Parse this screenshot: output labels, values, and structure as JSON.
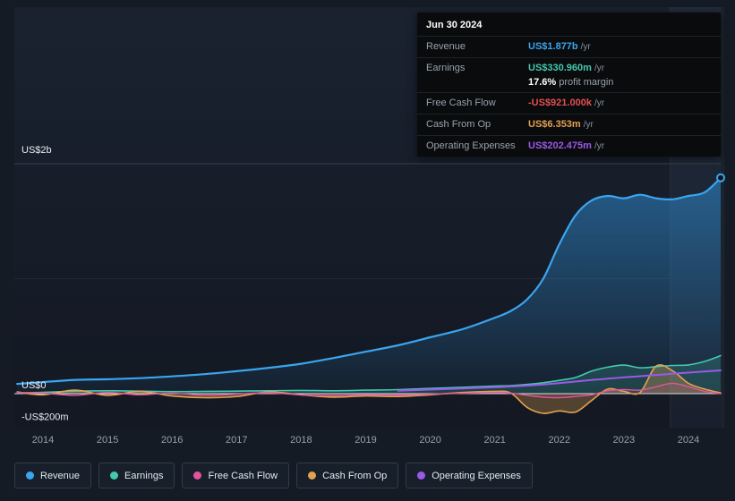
{
  "colors": {
    "revenue": "#3aa5f0",
    "earnings": "#45c8b0",
    "fcf": "#e0559d",
    "cashop": "#e3a14f",
    "opex": "#9b59e8",
    "negative": "#e25050",
    "grid_major": "#39424e",
    "grid_minor": "#1f2835",
    "zero_line": "#e8edf2",
    "axis_text": "#97a1ad",
    "ylabel_text": "#e8edf2",
    "highlight_band": "rgba(141,173,217,0.06)",
    "tooltip_bg": "#0a0b0d"
  },
  "tooltip": {
    "date": "Jun 30 2024",
    "rows": [
      {
        "label": "Revenue",
        "value": "US$1.877b",
        "suffix": "/yr"
      },
      {
        "label": "Earnings",
        "value": "US$330.960m",
        "suffix": "/yr"
      },
      {
        "label": "Free Cash Flow",
        "value": "-US$921.000k",
        "suffix": "/yr"
      },
      {
        "label": "Cash From Op",
        "value": "US$6.353m",
        "suffix": "/yr"
      },
      {
        "label": "Operating Expenses",
        "value": "US$202.475m",
        "suffix": "/yr"
      }
    ],
    "profit_margin": {
      "pct": "17.6%",
      "label": " profit margin"
    }
  },
  "axis": {
    "y_labels": [
      {
        "text": "US$2b",
        "value": 2000,
        "dy": -12
      },
      {
        "text": "US$0",
        "value": 0,
        "dy": -6
      },
      {
        "text": "-US$200m",
        "value": -200,
        "dy": 4
      }
    ],
    "x_labels": [
      "2014",
      "2015",
      "2016",
      "2017",
      "2018",
      "2019",
      "2020",
      "2021",
      "2022",
      "2023",
      "2024"
    ]
  },
  "legend": {
    "items": [
      {
        "label": "Revenue",
        "color_key": "revenue"
      },
      {
        "label": "Earnings",
        "color_key": "earnings"
      },
      {
        "label": "Free Cash Flow",
        "color_key": "fcf"
      },
      {
        "label": "Cash From Op",
        "color_key": "cashop"
      },
      {
        "label": "Operating Expenses",
        "color_key": "opex"
      }
    ]
  },
  "chart_data": {
    "type": "line",
    "title": "",
    "unit": "US$ millions per year",
    "xlabel": "year",
    "ylabel": "US$",
    "ylim": [
      -200,
      2000
    ],
    "gridlines": [
      2000,
      1000
    ],
    "highlight_x_range": [
      2023.72,
      2024.56
    ],
    "x": [
      2013.6,
      2014,
      2014.5,
      2015,
      2015.5,
      2016,
      2016.5,
      2017,
      2017.5,
      2018,
      2018.5,
      2019,
      2019.5,
      2020,
      2020.5,
      2021,
      2021.25,
      2021.5,
      2021.75,
      2022,
      2022.25,
      2022.5,
      2022.75,
      2023,
      2023.25,
      2023.5,
      2023.75,
      2024,
      2024.25,
      2024.5
    ],
    "series": [
      {
        "name": "Revenue",
        "color_key": "revenue",
        "fill": "gradient",
        "line_width": 2.2,
        "values": [
          85,
          100,
          120,
          125,
          135,
          150,
          170,
          195,
          225,
          260,
          310,
          365,
          420,
          490,
          560,
          660,
          720,
          820,
          1000,
          1300,
          1550,
          1680,
          1720,
          1700,
          1730,
          1700,
          1690,
          1720,
          1750,
          1877
        ]
      },
      {
        "name": "Earnings",
        "color_key": "earnings",
        "fill": "flat",
        "fill_opacity": 0.2,
        "line_width": 1.6,
        "values": [
          8,
          12,
          22,
          25,
          22,
          18,
          20,
          22,
          25,
          28,
          25,
          30,
          35,
          45,
          55,
          65,
          70,
          80,
          95,
          115,
          140,
          195,
          230,
          248,
          225,
          235,
          245,
          250,
          280,
          331
        ]
      },
      {
        "name": "Cash From Op",
        "color_key": "cashop",
        "fill": "flat",
        "fill_opacity": 0.3,
        "line_width": 1.6,
        "values": [
          15,
          -10,
          30,
          -15,
          20,
          -20,
          -35,
          -25,
          15,
          -10,
          -30,
          -20,
          -25,
          -10,
          10,
          20,
          5,
          -120,
          -171,
          -150,
          -160,
          -60,
          40,
          20,
          10,
          240,
          200,
          90,
          40,
          6.35
        ]
      },
      {
        "name": "Free Cash Flow",
        "color_key": "fcf",
        "fill": "flat",
        "fill_opacity": 0.15,
        "line_width": 1.4,
        "values": [
          10,
          5,
          -15,
          10,
          -10,
          5,
          -15,
          -5,
          8,
          -12,
          -18,
          -10,
          -12,
          -5,
          3,
          10,
          5,
          -15,
          -30,
          -35,
          -25,
          -10,
          25,
          35,
          30,
          60,
          90,
          60,
          20,
          -0.92
        ]
      },
      {
        "name": "Operating Expenses",
        "color_key": "opex",
        "fill": "none",
        "line_width": 2,
        "values": [
          null,
          null,
          null,
          null,
          null,
          null,
          null,
          null,
          null,
          null,
          null,
          null,
          25,
          35,
          45,
          55,
          62,
          70,
          80,
          92,
          105,
          118,
          130,
          142,
          152,
          163,
          173,
          183,
          193,
          202.5
        ]
      }
    ],
    "end_marker_series": "Revenue",
    "legend_position": "bottom-left"
  }
}
